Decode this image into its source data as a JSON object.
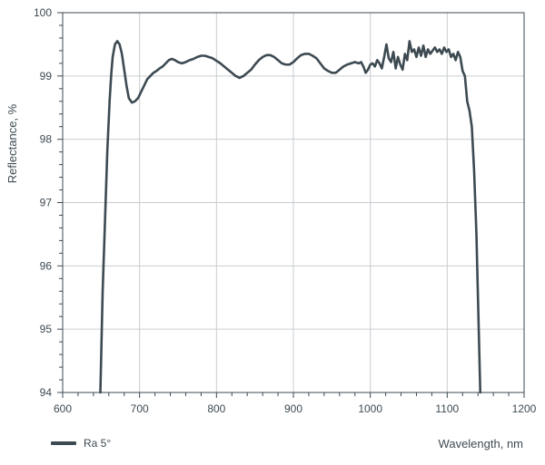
{
  "chart_data": {
    "type": "line",
    "xlabel": "Wavelength, nm",
    "ylabel": "Reflectance, %",
    "xlim": [
      600,
      1200
    ],
    "ylim": [
      94,
      100
    ],
    "xticks": [
      600,
      700,
      800,
      900,
      1000,
      1100,
      1200
    ],
    "yticks": [
      94,
      95,
      96,
      97,
      98,
      99,
      100
    ],
    "grid": true,
    "legend": "bottom-left",
    "colors": {
      "line": "#3d4a52",
      "grid": "#c9cdd0",
      "axis": "#3d4a52"
    },
    "series": [
      {
        "name": "Ra 5°",
        "x": [
          649,
          652,
          655,
          658,
          661,
          663,
          665,
          668,
          671,
          674,
          677,
          680,
          683,
          686,
          690,
          694,
          698,
          702,
          706,
          710,
          714,
          718,
          722,
          726,
          730,
          734,
          738,
          742,
          746,
          750,
          755,
          760,
          765,
          770,
          775,
          780,
          785,
          790,
          795,
          800,
          805,
          810,
          815,
          820,
          825,
          830,
          835,
          840,
          845,
          850,
          855,
          860,
          865,
          870,
          875,
          880,
          885,
          890,
          895,
          900,
          905,
          910,
          915,
          920,
          925,
          930,
          935,
          940,
          945,
          950,
          955,
          960,
          965,
          970,
          975,
          980,
          985,
          988,
          991,
          994,
          997,
          1000,
          1003,
          1006,
          1009,
          1012,
          1015,
          1018,
          1021,
          1024,
          1027,
          1030,
          1033,
          1036,
          1039,
          1042,
          1045,
          1048,
          1051,
          1054,
          1057,
          1060,
          1063,
          1066,
          1069,
          1072,
          1075,
          1078,
          1081,
          1084,
          1087,
          1090,
          1093,
          1096,
          1099,
          1102,
          1105,
          1108,
          1111,
          1114,
          1117,
          1120,
          1123,
          1126,
          1129,
          1132,
          1135,
          1138,
          1141,
          1143
        ],
        "y": [
          94.0,
          95.6,
          96.7,
          97.8,
          98.6,
          99.0,
          99.3,
          99.5,
          99.55,
          99.5,
          99.35,
          99.1,
          98.85,
          98.65,
          98.58,
          98.6,
          98.65,
          98.75,
          98.85,
          98.95,
          99.0,
          99.05,
          99.08,
          99.12,
          99.15,
          99.2,
          99.25,
          99.27,
          99.25,
          99.22,
          99.2,
          99.22,
          99.25,
          99.27,
          99.3,
          99.32,
          99.32,
          99.3,
          99.28,
          99.24,
          99.2,
          99.15,
          99.1,
          99.05,
          99.0,
          98.97,
          99.0,
          99.05,
          99.1,
          99.18,
          99.25,
          99.3,
          99.33,
          99.33,
          99.3,
          99.25,
          99.2,
          99.18,
          99.18,
          99.22,
          99.28,
          99.33,
          99.35,
          99.35,
          99.32,
          99.28,
          99.2,
          99.12,
          99.08,
          99.05,
          99.05,
          99.1,
          99.15,
          99.18,
          99.2,
          99.22,
          99.2,
          99.22,
          99.15,
          99.05,
          99.1,
          99.18,
          99.2,
          99.15,
          99.25,
          99.2,
          99.12,
          99.3,
          99.5,
          99.28,
          99.22,
          99.38,
          99.12,
          99.3,
          99.18,
          99.1,
          99.35,
          99.25,
          99.55,
          99.38,
          99.42,
          99.3,
          99.45,
          99.32,
          99.48,
          99.3,
          99.42,
          99.35,
          99.4,
          99.45,
          99.38,
          99.42,
          99.35,
          99.45,
          99.38,
          99.42,
          99.3,
          99.35,
          99.25,
          99.38,
          99.3,
          99.08,
          99.0,
          98.6,
          98.45,
          98.2,
          97.5,
          96.5,
          95.0,
          94.0
        ]
      }
    ]
  }
}
